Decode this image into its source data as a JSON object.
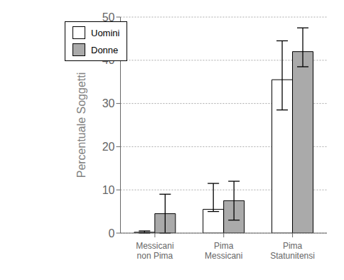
{
  "chart_data": {
    "type": "bar",
    "categories": [
      "Messicani\nnon Pima",
      "Pima\nMessicani",
      "Pima\nStatunitensi"
    ],
    "series": [
      {
        "name": "Uomini",
        "color": "#ffffff",
        "values": [
          0.2,
          5.5,
          35.5
        ],
        "errors_lo": [
          0.2,
          0.5,
          7.0
        ],
        "errors_hi": [
          0.3,
          6.0,
          9.0
        ]
      },
      {
        "name": "Donne",
        "color": "#aaaaaa",
        "values": [
          4.5,
          7.5,
          42.0
        ],
        "errors_lo": [
          4.5,
          4.5,
          3.5
        ],
        "errors_hi": [
          4.5,
          4.5,
          5.5
        ]
      }
    ],
    "ylabel": "Percentuale Soggetti",
    "ylim": [
      0,
      50
    ],
    "yticks": [
      0,
      10,
      20,
      30,
      40,
      50
    ],
    "grid": true,
    "legend": "upper left"
  }
}
